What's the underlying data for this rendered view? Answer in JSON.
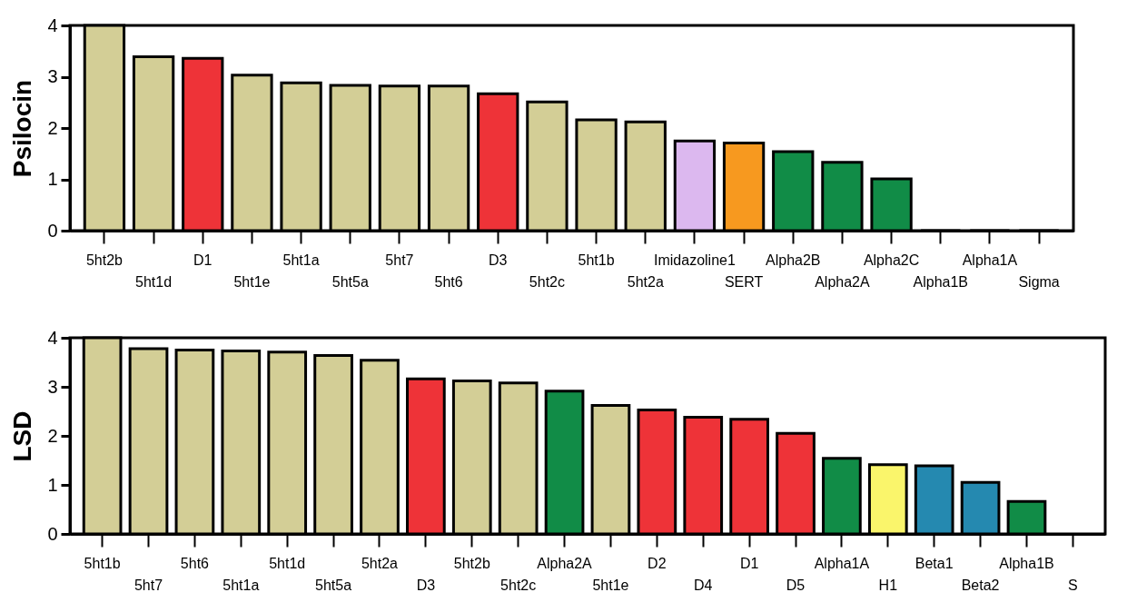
{
  "chart_data": [
    {
      "type": "bar",
      "ylabel": "Psilocin",
      "categories": [
        "5ht2b",
        "5ht1d",
        "D1",
        "5ht1e",
        "5ht1a",
        "5ht5a",
        "5ht7",
        "5ht6",
        "D3",
        "5ht2c",
        "5ht1b",
        "5ht2a",
        "Imidazoline1",
        "SERT",
        "Alpha2B",
        "Alpha2A",
        "Alpha2C",
        "Alpha1B",
        "Alpha1A",
        "Sigma"
      ],
      "values": [
        4.0,
        3.39,
        3.36,
        3.03,
        2.88,
        2.83,
        2.82,
        2.82,
        2.67,
        2.51,
        2.16,
        2.12,
        1.75,
        1.71,
        1.54,
        1.33,
        1.01,
        0,
        0,
        0
      ],
      "colors": [
        "#d3ce96",
        "#d3ce96",
        "#ee3338",
        "#d3ce96",
        "#d3ce96",
        "#d3ce96",
        "#d3ce96",
        "#d3ce96",
        "#ee3338",
        "#d3ce96",
        "#d3ce96",
        "#d3ce96",
        "#dcb8ef",
        "#f7991f",
        "#118c47",
        "#118c47",
        "#118c47",
        "#000000",
        "#000000",
        "#000000"
      ],
      "ylim": [
        0,
        4
      ],
      "yticks": [
        0,
        1,
        2,
        3,
        4
      ],
      "grid": false
    },
    {
      "type": "bar",
      "ylabel": "LSD",
      "categories": [
        "5ht1b",
        "5ht7",
        "5ht6",
        "5ht1a",
        "5ht1d",
        "5ht5a",
        "5ht2a",
        "D3",
        "5ht2b",
        "5ht2c",
        "Alpha2A",
        "5ht1e",
        "D2",
        "D4",
        "D1",
        "D5",
        "Alpha1A",
        "H1",
        "Beta1",
        "Beta2",
        "Alpha1B",
        "S"
      ],
      "values": [
        4.0,
        3.78,
        3.75,
        3.73,
        3.71,
        3.64,
        3.54,
        3.16,
        3.12,
        3.08,
        2.91,
        2.62,
        2.53,
        2.38,
        2.34,
        2.05,
        1.54,
        1.41,
        1.39,
        1.05,
        0.66,
        null
      ],
      "colors": [
        "#d3ce96",
        "#d3ce96",
        "#d3ce96",
        "#d3ce96",
        "#d3ce96",
        "#d3ce96",
        "#d3ce96",
        "#ee3338",
        "#d3ce96",
        "#d3ce96",
        "#118c47",
        "#d3ce96",
        "#ee3338",
        "#ee3338",
        "#ee3338",
        "#ee3338",
        "#118c47",
        "#faf56b",
        "#2589b0",
        "#2589b0",
        "#118c47",
        "#118c47"
      ],
      "ylim": [
        0,
        4
      ],
      "yticks": [
        0,
        1,
        2,
        3,
        4
      ],
      "grid": false
    }
  ]
}
